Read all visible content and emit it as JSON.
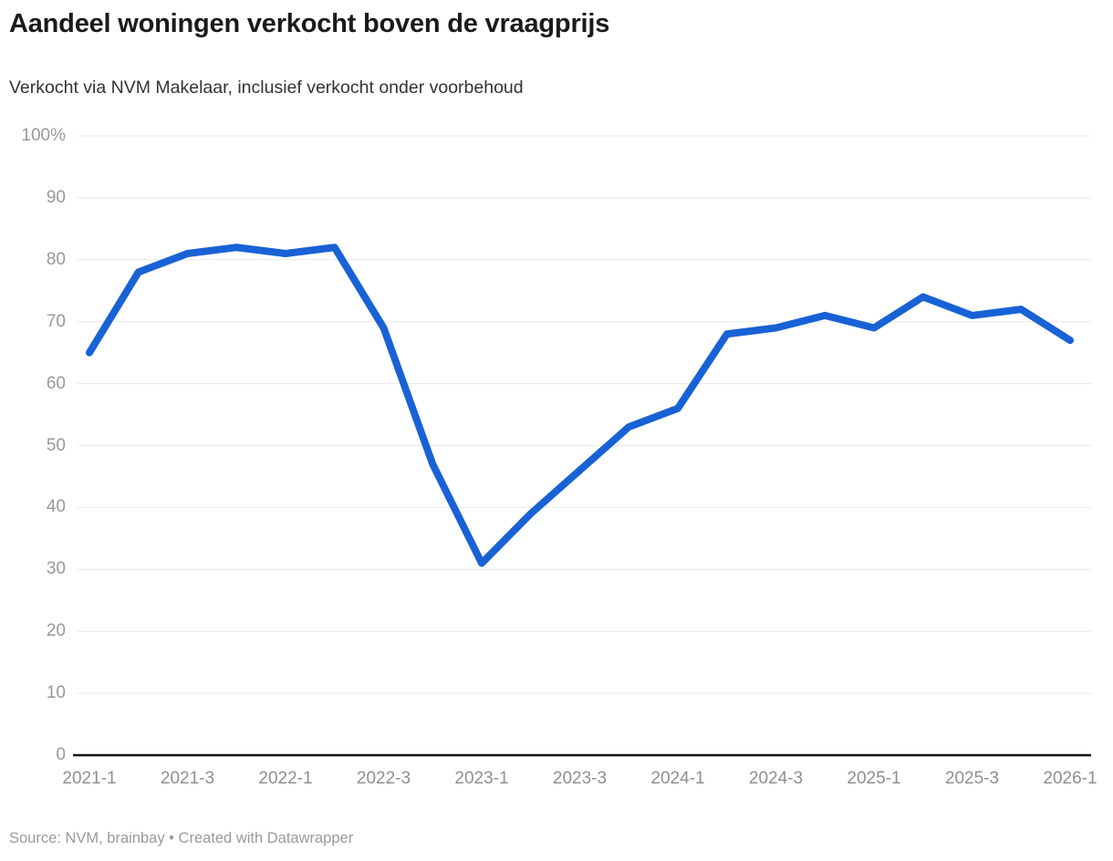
{
  "page": {
    "title": "Aandeel woningen verkocht boven de vraagprijs",
    "subtitle": "Verkocht via NVM Makelaar, inclusief verkocht onder voorbehoud",
    "footer": {
      "source_text": "Source: NVM, brainbay",
      "separator": " • ",
      "credit_text": "Created with Datawrapper"
    }
  },
  "colors": {
    "line": "#1862d6",
    "gridline": "#e8e8e8",
    "baseline": "#111111",
    "axis_label": "#989898"
  },
  "chart_data": {
    "type": "line",
    "title": "Aandeel woningen verkocht boven de vraagprijs",
    "subtitle": "Verkocht via NVM Makelaar, inclusief verkocht onder voorbehoud",
    "x": [
      "2021-1",
      "2021-2",
      "2021-3",
      "2021-4",
      "2022-1",
      "2022-2",
      "2022-3",
      "2022-4",
      "2023-1",
      "2023-2",
      "2023-3",
      "2023-4",
      "2024-1",
      "2024-2",
      "2024-3",
      "2024-4",
      "2025-1",
      "2025-2",
      "2025-3",
      "2025-4",
      "2026-1"
    ],
    "values": [
      65,
      78,
      81,
      82,
      81,
      82,
      69,
      47,
      31,
      39,
      46,
      53,
      56,
      68,
      69,
      71,
      69,
      74,
      71,
      72,
      67
    ],
    "unit": "%",
    "x_tick_labels": [
      "2021-1",
      "2021-3",
      "2022-1",
      "2022-3",
      "2023-1",
      "2023-3",
      "2024-1",
      "2024-3",
      "2025-1",
      "2025-3",
      "2026-1"
    ],
    "x_tick_indices": [
      0,
      2,
      4,
      6,
      8,
      10,
      12,
      14,
      16,
      18,
      20
    ],
    "y_ticks": [
      0,
      10,
      20,
      30,
      40,
      50,
      60,
      70,
      80,
      90,
      100
    ],
    "y_top_label": "100%",
    "ylim": [
      0,
      100
    ],
    "grid": true,
    "legend": "none",
    "source": "NVM, brainbay"
  }
}
